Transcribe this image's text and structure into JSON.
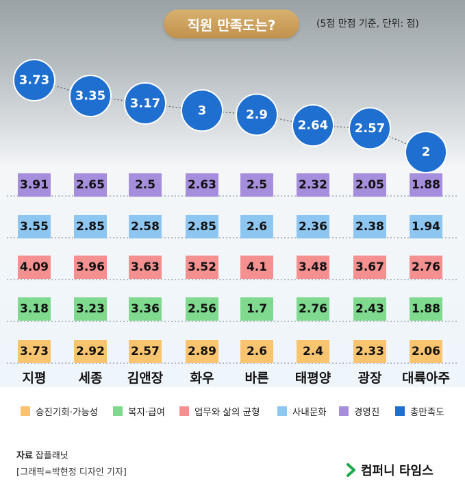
{
  "header": {
    "title": "직원 만족도는?",
    "unit_note": "(5점 만점 기준, 단위: 점)"
  },
  "chart_data": {
    "type": "table",
    "title": "직원 만족도는?",
    "subtitle": "(5점 만점 기준, 단위: 점)",
    "categories": [
      "지평",
      "세종",
      "김앤장",
      "화우",
      "바른",
      "태평양",
      "광장",
      "대륙아주"
    ],
    "overall": {
      "name": "총만족도",
      "color": "#1e6fd0",
      "labels": [
        "3.73",
        "3.35",
        "3.17",
        "3",
        "2.9",
        "2.64",
        "2.57",
        "2"
      ]
    },
    "series": [
      {
        "name": "경영진",
        "color": "#a58fdc",
        "labels": [
          "3.91",
          "2.65",
          "2.5",
          "2.63",
          "2.5",
          "2.32",
          "2.05",
          "1.88"
        ]
      },
      {
        "name": "사내문화",
        "color": "#8ec6f2",
        "labels": [
          "3.55",
          "2.85",
          "2.58",
          "2.85",
          "2.6",
          "2.36",
          "2.38",
          "1.94"
        ]
      },
      {
        "name": "업무와 삶의 균형",
        "color": "#f4908f",
        "labels": [
          "4.09",
          "3.96",
          "3.63",
          "3.52",
          "4.1",
          "3.48",
          "3.67",
          "2.76"
        ]
      },
      {
        "name": "복지·급여",
        "color": "#7fd98f",
        "labels": [
          "3.18",
          "3.23",
          "3.36",
          "2.56",
          "1.7",
          "2.76",
          "2.43",
          "1.88"
        ]
      },
      {
        "name": "승진기회·가능성",
        "color": "#f9c46f",
        "labels": [
          "3.73",
          "2.92",
          "2.57",
          "2.89",
          "2.6",
          "2.4",
          "2.33",
          "2.06"
        ]
      }
    ],
    "legend": [
      {
        "name": "승진기회·가능성",
        "color": "#f9c46f"
      },
      {
        "name": "복지·급여",
        "color": "#7fd98f"
      },
      {
        "name": "업무와 삶의 균형",
        "color": "#f4908f"
      },
      {
        "name": "사내문화",
        "color": "#8ec6f2"
      },
      {
        "name": "경영진",
        "color": "#a58fdc"
      },
      {
        "name": "총만족도",
        "color": "#1e6fd0"
      }
    ],
    "legend_position": "bottom"
  },
  "footer": {
    "source_label": "자료",
    "source_value": "잡플래닛",
    "credit": "[그래픽=박현정 디자인 기자]",
    "logo_text": "컴퍼니 타임스",
    "logo_color": "#1aa84a"
  }
}
